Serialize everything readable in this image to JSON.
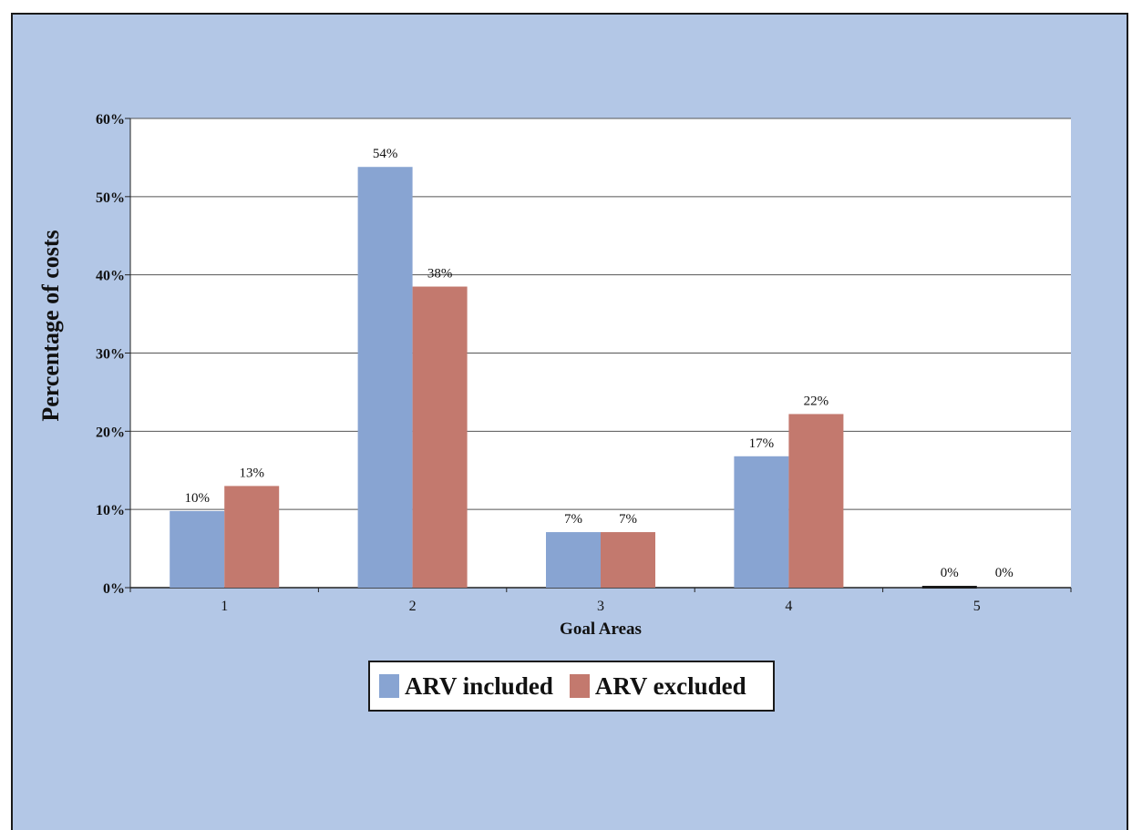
{
  "chart_data": {
    "type": "bar",
    "title": "",
    "xlabel": "Goal Areas",
    "ylabel": "Percentage of costs",
    "categories": [
      "1",
      "2",
      "3",
      "4",
      "5"
    ],
    "ylim": [
      0,
      60
    ],
    "yticks": [
      "0%",
      "10%",
      "20%",
      "30%",
      "40%",
      "50%",
      "60%"
    ],
    "grid": true,
    "legend_position": "bottom",
    "series": [
      {
        "name": "ARV included",
        "color": "#88a4d2",
        "values": [
          9.8,
          53.8,
          7.1,
          16.8,
          0.2
        ],
        "labels": [
          "10%",
          "54%",
          "7%",
          "17%",
          "0%"
        ]
      },
      {
        "name": "ARV excluded",
        "color": "#c3796e",
        "values": [
          13.0,
          38.5,
          7.1,
          22.2,
          0
        ],
        "labels": [
          "13%",
          "38%",
          "7%",
          "22%",
          "0%"
        ]
      }
    ]
  }
}
